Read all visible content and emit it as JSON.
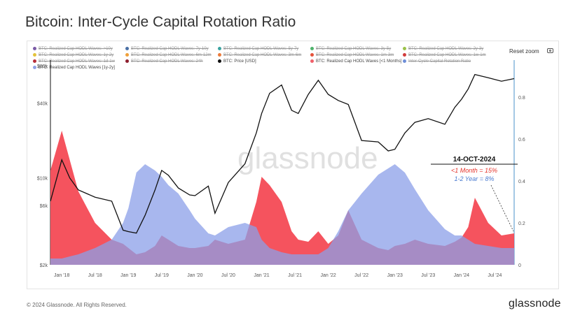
{
  "page": {
    "title": "Bitcoin: Inter-Cycle Capital Rotation Ratio",
    "copyright": "© 2024 Glassnode. All Rights Reserved.",
    "brand": "glassnode",
    "watermark": "glassnode"
  },
  "toolbar": {
    "reset_zoom": "Reset zoom",
    "camera_icon": "camera-icon"
  },
  "legend": {
    "items": [
      {
        "label": "BTC: Realized Cap HODL Waves: >10y",
        "color": "#7b5aa6",
        "visible": false
      },
      {
        "label": "BTC: Realized Cap HODL Waves: 7y-10y",
        "color": "#4a6fa5",
        "visible": false
      },
      {
        "label": "BTC: Realized Cap HODL Waves: 5y-7y",
        "color": "#3aa3a0",
        "visible": false
      },
      {
        "label": "BTC: Realized Cap HODL Waves: 3y-5y",
        "color": "#4fb36c",
        "visible": false
      },
      {
        "label": "BTC: Realized Cap HODL Waves: 2y-3y",
        "color": "#9bc24a",
        "visible": false
      },
      {
        "label": "BTC: Realized Cap HODL Waves: 1y-2y",
        "color": "#e3c33b",
        "visible": false
      },
      {
        "label": "BTC: Realized Cap HODL Waves: 6m-12m",
        "color": "#f0a03a",
        "visible": false
      },
      {
        "label": "BTC: Realized Cap HODL Waves: 3m-6m",
        "color": "#ec7a3a",
        "visible": false
      },
      {
        "label": "BTC: Realized Cap HODL Waves: 1m-3m",
        "color": "#e5533b",
        "visible": false
      },
      {
        "label": "BTC: Realized Cap HODL Waves: 1w-1m",
        "color": "#d23c3c",
        "visible": false
      },
      {
        "label": "BTC: Realized Cap HODL Waves: 1d-1w",
        "color": "#b72e3a",
        "visible": false
      },
      {
        "label": "BTC: Realized Cap HODL Waves: 24h",
        "color": "#8e1f2e",
        "visible": false
      },
      {
        "label": "BTC: Price [USD]",
        "color": "#111111",
        "visible": true
      },
      {
        "label": "BTC: Realized Cap HODL Waves [<1 Months]",
        "color": "#f0606a",
        "visible": true
      },
      {
        "label": "Inter-Cycle Capital Rotation Ratio",
        "color": "#6f8fd8",
        "visible": false
      },
      {
        "label": "BTC: Realized Cap HODL Waves [1y-2y]",
        "color": "#8fa0e6",
        "visible": true
      }
    ]
  },
  "annotation": {
    "date": "14-OCT-2024",
    "line1": "<1 Month  = 15%",
    "line2": "1-2 Year = 8%",
    "line1_color": "#e5332b",
    "line2_color": "#4a7bd0"
  },
  "chart_data": {
    "type": "area",
    "x_tick_labels": [
      "Jan '18",
      "Jul '18",
      "Jan '19",
      "Jul '19",
      "Jan '20",
      "Jul '20",
      "Jan '21",
      "Jul '21",
      "Jan '22",
      "Jul '22",
      "Jan '23",
      "Jul '23",
      "Jan '24",
      "Jul '24"
    ],
    "y_left": {
      "scale": "log",
      "ticks": [
        2000,
        6000,
        10000,
        40000,
        80000
      ],
      "tick_labels": [
        "$2k",
        "$6k",
        "$10k",
        "$40k",
        "$80k"
      ],
      "range": [
        2000,
        80000
      ]
    },
    "y_right": {
      "scale": "linear",
      "ticks": [
        0,
        0.2,
        0.4,
        0.6,
        0.8
      ],
      "tick_labels": [
        "0",
        "0.2",
        "0.4",
        "0.6",
        "0.8"
      ],
      "range": [
        0,
        0.95
      ]
    },
    "x": [
      2017.83,
      2018.0,
      2018.12,
      2018.25,
      2018.5,
      2018.75,
      2018.92,
      2019.0,
      2019.12,
      2019.25,
      2019.4,
      2019.5,
      2019.6,
      2019.75,
      2019.92,
      2020.0,
      2020.2,
      2020.3,
      2020.5,
      2020.75,
      2020.92,
      2021.0,
      2021.12,
      2021.3,
      2021.45,
      2021.55,
      2021.7,
      2021.85,
      2022.0,
      2022.15,
      2022.3,
      2022.5,
      2022.75,
      2022.9,
      2023.0,
      2023.15,
      2023.3,
      2023.5,
      2023.75,
      2023.9,
      2024.0,
      2024.1,
      2024.2,
      2024.4,
      2024.6,
      2024.79
    ],
    "series": [
      {
        "name": "BTC: Price [USD]",
        "axis": "left",
        "color": "#111111",
        "values": [
          6500,
          14000,
          10000,
          8000,
          7000,
          6500,
          3800,
          3700,
          3600,
          5000,
          8000,
          11500,
          10500,
          8300,
          7300,
          7200,
          8600,
          5200,
          9200,
          13000,
          23000,
          33000,
          48000,
          56000,
          35000,
          33000,
          47000,
          61000,
          47000,
          42000,
          39000,
          20000,
          19500,
          16500,
          17000,
          23000,
          28000,
          30000,
          27000,
          37000,
          43000,
          52000,
          68000,
          64000,
          60000,
          63000
        ]
      },
      {
        "name": "BTC: Realized Cap HODL Waves [<1 Months]",
        "axis": "right",
        "color": "#f0606a",
        "values": [
          0.45,
          0.64,
          0.5,
          0.35,
          0.2,
          0.12,
          0.1,
          0.08,
          0.05,
          0.06,
          0.09,
          0.14,
          0.12,
          0.09,
          0.08,
          0.08,
          0.09,
          0.12,
          0.1,
          0.12,
          0.3,
          0.42,
          0.38,
          0.3,
          0.16,
          0.12,
          0.11,
          0.16,
          0.1,
          0.14,
          0.26,
          0.12,
          0.08,
          0.07,
          0.09,
          0.1,
          0.12,
          0.1,
          0.09,
          0.11,
          0.13,
          0.18,
          0.32,
          0.2,
          0.14,
          0.15
        ]
      },
      {
        "name": "BTC: Realized Cap HODL Waves [1y-2y]",
        "axis": "right",
        "color": "#8fa0e6",
        "values": [
          0.03,
          0.03,
          0.04,
          0.05,
          0.08,
          0.12,
          0.2,
          0.27,
          0.44,
          0.48,
          0.45,
          0.42,
          0.38,
          0.34,
          0.26,
          0.22,
          0.15,
          0.14,
          0.18,
          0.2,
          0.18,
          0.12,
          0.08,
          0.06,
          0.05,
          0.05,
          0.05,
          0.05,
          0.08,
          0.16,
          0.26,
          0.34,
          0.43,
          0.46,
          0.48,
          0.44,
          0.36,
          0.26,
          0.17,
          0.14,
          0.14,
          0.12,
          0.1,
          0.09,
          0.08,
          0.08
        ]
      }
    ]
  }
}
